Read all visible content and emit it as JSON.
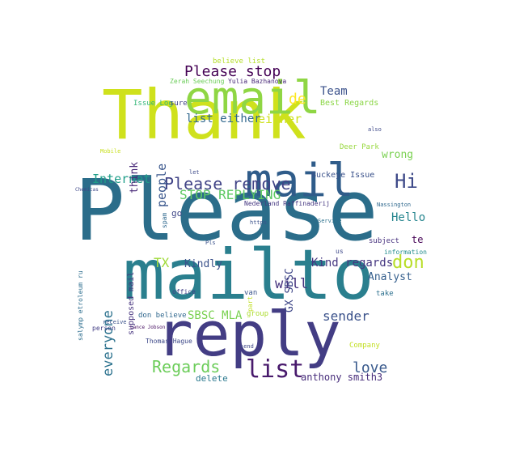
{
  "words": [
    {
      "text": "Please",
      "c": "#2b6d8a"
    },
    {
      "text": "mailto",
      "c": "#2a7f8e"
    },
    {
      "text": "Thank",
      "c": "#cfe11c"
    },
    {
      "text": "reply",
      "c": "#433d84"
    },
    {
      "text": "email",
      "c": "#8fd644"
    },
    {
      "text": "mail",
      "c": "#2f5c8a"
    },
    {
      "text": "list",
      "c": "#481a6c"
    },
    {
      "text": "Please remove",
      "c": "#414487"
    },
    {
      "text": "Please stop",
      "c": "#440154"
    },
    {
      "text": "Regards",
      "c": "#6ccd5a"
    },
    {
      "text": "STOP REPLYING",
      "c": "#5ec962"
    },
    {
      "text": "Internet",
      "c": "#1f9e89"
    },
    {
      "text": "list either",
      "c": "#31688e"
    },
    {
      "text": "either",
      "c": "#cde11d"
    },
    {
      "text": "de",
      "c": "#fde725"
    },
    {
      "text": "Team",
      "c": "#3b528b"
    },
    {
      "text": "Hi",
      "c": "#3e4a89"
    },
    {
      "text": "Hello",
      "c": "#25858e"
    },
    {
      "text": "don",
      "c": "#b8de29"
    },
    {
      "text": "Kind regards",
      "c": "#453781"
    },
    {
      "text": "Analyst",
      "c": "#355f8d"
    },
    {
      "text": "sender",
      "c": "#3b528b"
    },
    {
      "text": "love",
      "c": "#38598c"
    },
    {
      "text": "everyone",
      "c": "#2c728e"
    },
    {
      "text": "TX",
      "c": "#a0da39"
    },
    {
      "text": "Kindly",
      "c": "#3b528b"
    },
    {
      "text": "will",
      "c": "#46337e"
    },
    {
      "text": "GX SBSC",
      "c": "#3f4788"
    },
    {
      "text": "think",
      "c": "#482878"
    },
    {
      "text": "people",
      "c": "#39568c"
    },
    {
      "text": "SBSC MLA",
      "c": "#7ad151"
    },
    {
      "text": "anthony smith3",
      "c": "#472d7b"
    },
    {
      "text": "delete",
      "c": "#2a788e"
    },
    {
      "text": "te",
      "c": "#440154"
    },
    {
      "text": "wrong",
      "c": "#7ad151"
    },
    {
      "text": "Buckeye Issue",
      "c": "#3b528b"
    },
    {
      "text": "Best Regards",
      "c": "#8bd646"
    },
    {
      "text": "Issue Log",
      "c": "#35b779"
    },
    {
      "text": "sure",
      "c": "#414487"
    },
    {
      "text": "Zerah Seechung",
      "c": "#6ccd5a"
    },
    {
      "text": "Yulia Bazhanova",
      "c": "#482878"
    },
    {
      "text": "believe list",
      "c": "#b5de2b"
    },
    {
      "text": "Nederland Raffinaderij",
      "c": "#453781"
    },
    {
      "text": "salymp etroleum ru",
      "c": "#2e6e8e"
    },
    {
      "text": "supposed mail",
      "c": "#46337e"
    },
    {
      "text": "don believe",
      "c": "#31688e"
    },
    {
      "text": "Thomas Hague",
      "c": "#3e4989"
    },
    {
      "text": "Company",
      "c": "#c2df23"
    },
    {
      "text": "subject",
      "c": "#46307e"
    },
    {
      "text": "take",
      "c": "#2d708e"
    },
    {
      "text": "information",
      "c": "#228d8d"
    },
    {
      "text": "https",
      "c": "#3b528b"
    },
    {
      "text": "Service",
      "c": "#2c728e"
    },
    {
      "text": "group",
      "c": "#addc30"
    },
    {
      "text": "office",
      "c": "#424086"
    },
    {
      "text": "Deer Park",
      "c": "#98d83e"
    },
    {
      "text": "also",
      "c": "#3e4989"
    },
    {
      "text": "go",
      "c": "#3f4788"
    },
    {
      "text": "spam",
      "c": "#30698e"
    },
    {
      "text": "let",
      "c": "#3e4a89"
    },
    {
      "text": "Mobile",
      "c": "#c8e020"
    },
    {
      "text": "person",
      "c": "#433e85"
    },
    {
      "text": "receive",
      "c": "#3b528b"
    },
    {
      "text": "Chemicas",
      "c": "#3f4889"
    },
    {
      "text": "Lance Jobson",
      "c": "#471063"
    },
    {
      "text": "van",
      "c": "#3a548c"
    },
    {
      "text": "us",
      "c": "#3e4989"
    },
    {
      "text": "Pls",
      "c": "#3b528b"
    },
    {
      "text": "send",
      "c": "#3f4788"
    },
    {
      "text": "part",
      "c": "#c0df25"
    },
    {
      "text": "Nassington",
      "c": "#30698e"
    }
  ]
}
